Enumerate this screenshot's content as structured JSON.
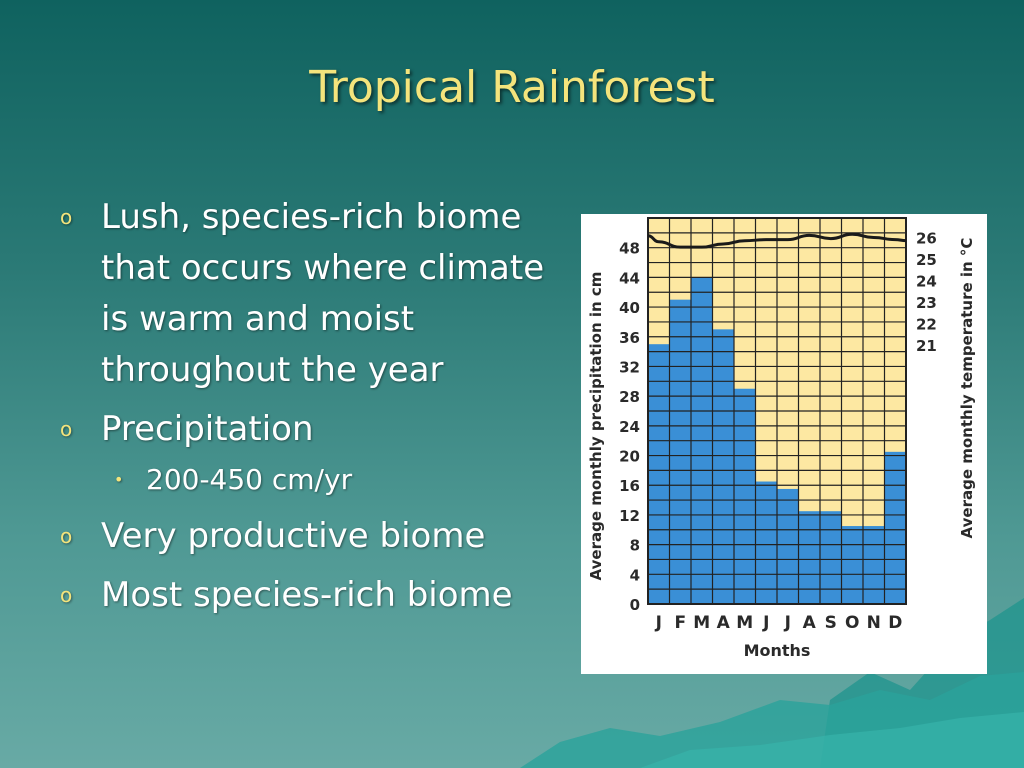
{
  "slide": {
    "title": "Tropical Rainforest",
    "bullets": [
      {
        "marker": "o",
        "text": "Lush, species-rich biome that occurs where climate is warm and moist throughout the year"
      },
      {
        "marker": "o",
        "text": "Precipitation",
        "sub": [
          {
            "marker": "•",
            "text": "200-450 cm/yr"
          }
        ]
      },
      {
        "marker": "o",
        "text": "Very productive biome"
      },
      {
        "marker": "o",
        "text": "Most species-rich biome"
      }
    ]
  },
  "colors": {
    "title": "#f4e47c",
    "precipitation_bar": "#3a8fd6",
    "chart_background": "#fde8a2",
    "temperature_line": "#1a1a1a"
  },
  "chart_data": {
    "type": "bar",
    "categories": [
      "J",
      "F",
      "M",
      "A",
      "M",
      "J",
      "J",
      "A",
      "S",
      "O",
      "N",
      "D"
    ],
    "xlabel": "Months",
    "ylabel": "Average monthly precipitation in cm",
    "y2label": "Average monthly temperature in °C",
    "y_ticks": [
      0,
      4,
      8,
      12,
      16,
      20,
      24,
      28,
      32,
      36,
      40,
      44,
      48
    ],
    "y2_ticks": [
      21,
      22,
      23,
      24,
      25,
      26
    ],
    "precipitation_cm": [
      35,
      41,
      44,
      37,
      29,
      16.5,
      15.5,
      12.5,
      12.5,
      10.5,
      10.5,
      20.5
    ],
    "temperature_c": [
      25.8,
      25.55,
      25.55,
      25.7,
      25.85,
      25.9,
      25.9,
      26.1,
      25.95,
      26.15,
      26.0,
      25.9
    ],
    "grid": true
  }
}
